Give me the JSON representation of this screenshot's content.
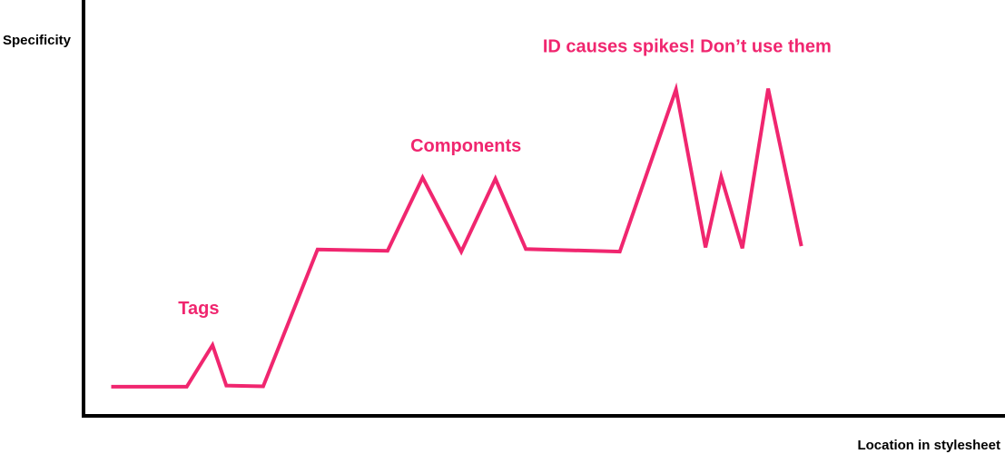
{
  "chart_data": {
    "type": "line",
    "title": "",
    "xlabel": "Location in stylesheet",
    "ylabel": "Specificity",
    "xlim": [
      0,
      100
    ],
    "ylim": [
      0,
      100
    ],
    "grid": false,
    "legend": "none",
    "colors": {
      "line": "#f0266f",
      "axis": "#000000",
      "annotation": "#f0266f"
    },
    "series": [
      {
        "x": [
          3,
          11.2,
          14,
          15.5,
          19.5,
          25.4,
          33,
          36.8,
          41,
          44.7,
          48,
          58.2,
          64.3,
          67.5,
          69.2,
          71.5,
          74.3,
          77.9
        ],
        "y": [
          7,
          7,
          17,
          7.3,
          7.1,
          40,
          39.7,
          57.3,
          39.5,
          57,
          40.1,
          39.5,
          78.5,
          40.5,
          57.5,
          40.3,
          78.7,
          40.8
        ]
      }
    ],
    "annotations": [
      {
        "text": "Tags",
        "x": 12.5,
        "y": 24.5
      },
      {
        "text": "Components",
        "x": 41.5,
        "y": 63.5
      },
      {
        "text": "ID causes spikes! Don’t use them",
        "x": 65.5,
        "y": 87.5
      }
    ]
  }
}
